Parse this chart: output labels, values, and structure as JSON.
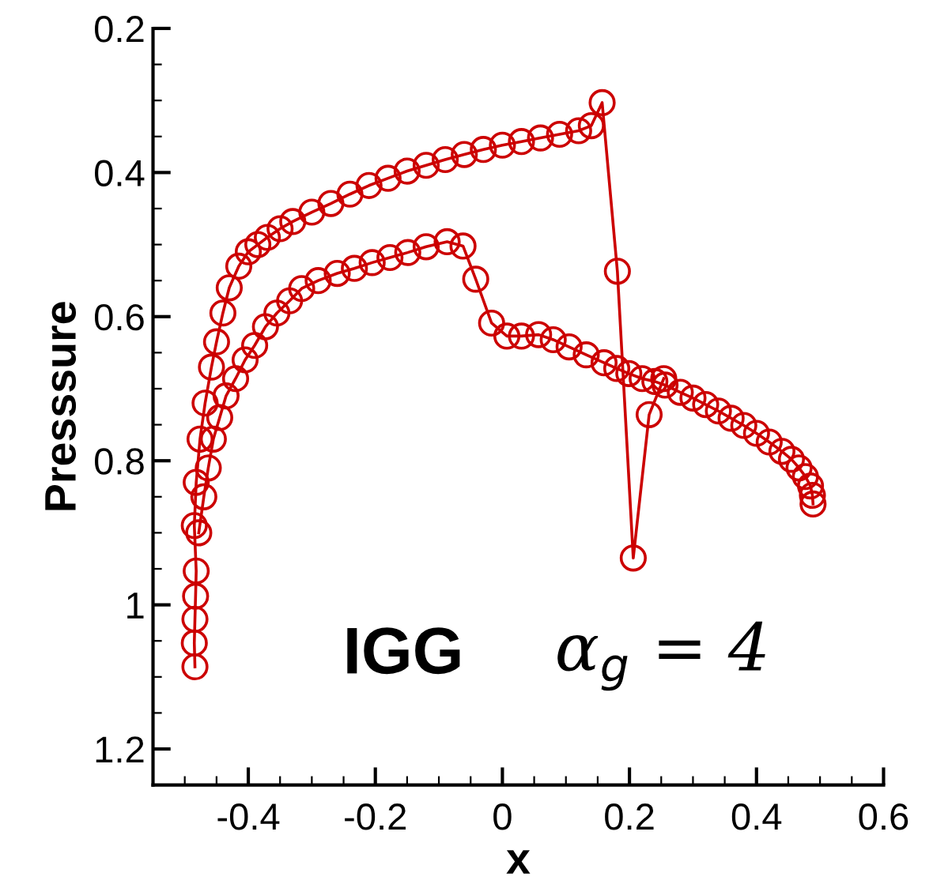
{
  "chart_data": {
    "type": "line",
    "xlabel": "x",
    "ylabel": "Presssure",
    "xlim": [
      -0.55,
      0.6
    ],
    "xticks": [
      -0.4,
      -0.2,
      0,
      0.2,
      0.4,
      0.6
    ],
    "ylim": [
      1.25,
      0.2
    ],
    "yticks": [
      0.2,
      0.4,
      0.6,
      0.8,
      1,
      1.2
    ],
    "grid": false,
    "legend": false,
    "marker": "circle",
    "line_style": "solid",
    "annotations": [
      "IGG",
      "α$_{g}$ = 4"
    ],
    "series": [
      {
        "color": "#cc0000",
        "x": [
          -0.484,
          -0.485,
          -0.484,
          -0.483,
          -0.482,
          -0.485,
          -0.482,
          -0.476,
          -0.468,
          -0.458,
          -0.45,
          -0.44,
          -0.43,
          -0.415,
          -0.4,
          -0.385,
          -0.37,
          -0.35,
          -0.33,
          -0.3,
          -0.27,
          -0.24,
          -0.21,
          -0.18,
          -0.15,
          -0.12,
          -0.09,
          -0.06,
          -0.03,
          0,
          0.03,
          0.06,
          0.09,
          0.12,
          0.14,
          0.157,
          0.181,
          0.206,
          0.231,
          0.254
        ],
        "values": [
          1.086,
          1.053,
          1.02,
          0.988,
          0.953,
          0.89,
          0.83,
          0.77,
          0.72,
          0.67,
          0.635,
          0.595,
          0.56,
          0.53,
          0.51,
          0.5,
          0.49,
          0.478,
          0.468,
          0.455,
          0.443,
          0.43,
          0.418,
          0.408,
          0.398,
          0.39,
          0.382,
          0.375,
          0.368,
          0.362,
          0.357,
          0.352,
          0.347,
          0.342,
          0.335,
          0.303,
          0.537,
          0.935,
          0.736,
          0.686
        ]
      },
      {
        "color": "#cc0000",
        "x": [
          -0.478,
          -0.47,
          -0.463,
          -0.455,
          -0.445,
          -0.435,
          -0.42,
          -0.405,
          -0.39,
          -0.373,
          -0.355,
          -0.335,
          -0.316,
          -0.29,
          -0.26,
          -0.233,
          -0.205,
          -0.177,
          -0.149,
          -0.12,
          -0.087,
          -0.062,
          -0.042,
          -0.017,
          0.007,
          0.03,
          0.057,
          0.08,
          0.105,
          0.132,
          0.16,
          0.18,
          0.199,
          0.22,
          0.24,
          0.256,
          0.28,
          0.3,
          0.32,
          0.34,
          0.36,
          0.38,
          0.4,
          0.42,
          0.44,
          0.455,
          0.467,
          0.477,
          0.485,
          0.488,
          0.489
        ],
        "values": [
          0.9,
          0.85,
          0.81,
          0.77,
          0.74,
          0.71,
          0.686,
          0.66,
          0.64,
          0.614,
          0.595,
          0.578,
          0.561,
          0.55,
          0.54,
          0.533,
          0.525,
          0.518,
          0.511,
          0.503,
          0.496,
          0.502,
          0.548,
          0.609,
          0.627,
          0.627,
          0.625,
          0.632,
          0.642,
          0.653,
          0.664,
          0.672,
          0.679,
          0.686,
          0.69,
          0.695,
          0.705,
          0.713,
          0.722,
          0.731,
          0.741,
          0.751,
          0.762,
          0.774,
          0.787,
          0.798,
          0.81,
          0.822,
          0.835,
          0.848,
          0.86
        ]
      }
    ]
  }
}
